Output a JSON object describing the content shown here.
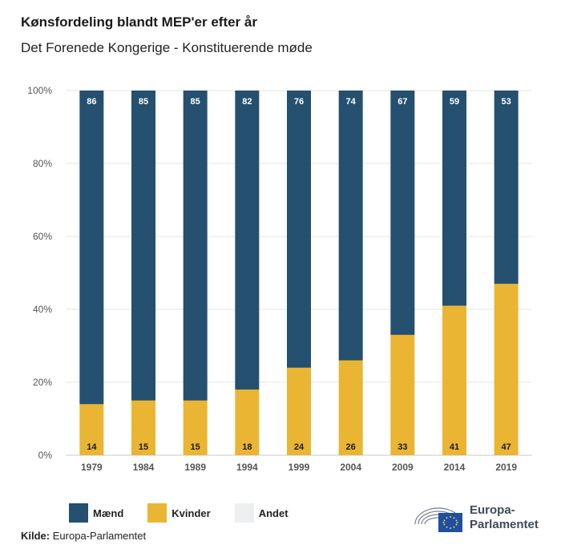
{
  "header": {
    "title": "Kønsfordeling blandt MEP'er efter år",
    "subtitle": "Det Forenede Kongerige - Konstituerende møde"
  },
  "legend": {
    "men": "Mænd",
    "women": "Kvinder",
    "other": "Andet"
  },
  "source": {
    "label": "Kilde:",
    "value": "Europa-Parlamentet"
  },
  "logo": {
    "line1": "Europa-",
    "line2": "Parlamentet"
  },
  "colors": {
    "men": "#25506f",
    "women": "#eab532",
    "other": "#eeeff1"
  },
  "chart_data": {
    "type": "bar",
    "stacked": true,
    "categories": [
      "1979",
      "1984",
      "1989",
      "1994",
      "1999",
      "2004",
      "2009",
      "2014",
      "2019"
    ],
    "series": [
      {
        "name": "Kvinder",
        "values": [
          14,
          15,
          15,
          18,
          24,
          26,
          33,
          41,
          47
        ]
      },
      {
        "name": "Mænd",
        "values": [
          86,
          85,
          85,
          82,
          76,
          74,
          67,
          59,
          53
        ]
      },
      {
        "name": "Andet",
        "values": [
          0,
          0,
          0,
          0,
          0,
          0,
          0,
          0,
          0
        ]
      }
    ],
    "yticks": [
      "0%",
      "20%",
      "40%",
      "60%",
      "80%",
      "100%"
    ],
    "ylim": [
      0,
      100
    ],
    "grid": true,
    "legend_position": "bottom"
  }
}
